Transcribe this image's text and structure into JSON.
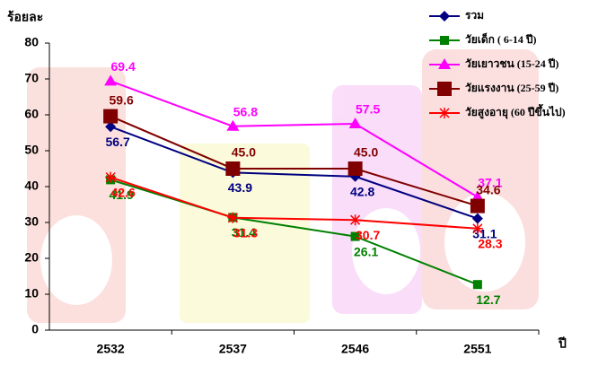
{
  "chart_data": {
    "type": "line",
    "y_label": "ร้อยละ",
    "x_label": "ปี",
    "categories": [
      "2532",
      "2537",
      "2546",
      "2551"
    ],
    "ylim": [
      0,
      80
    ],
    "yticks": [
      0,
      10,
      20,
      30,
      40,
      50,
      60,
      70,
      80
    ],
    "legend": "top-right",
    "series": [
      {
        "name": "รวม",
        "color": "#000080",
        "marker": "diamond",
        "values": [
          56.7,
          43.9,
          42.8,
          31.1
        ]
      },
      {
        "name": "วัยเด็ก ( 6-14 ปี)",
        "color": "#008000",
        "marker": "square",
        "values": [
          41.9,
          31.4,
          26.1,
          12.7
        ]
      },
      {
        "name": "วัยเยาวชน (15-24 ปี)",
        "color": "#ff00ff",
        "marker": "triangle",
        "values": [
          69.4,
          56.8,
          57.5,
          37.1
        ]
      },
      {
        "name": "วัยแรงงาน (25-59 ปี)",
        "color": "#800000",
        "marker": "bigsquare",
        "values": [
          59.6,
          45.0,
          45.0,
          34.6
        ],
        "value_labels": [
          "59.6",
          "45.0",
          "45.0",
          "34.6"
        ]
      },
      {
        "name": "วัยสูงอายุ (60 ปีขึ้นไป)",
        "color": "#ff0000",
        "marker": "star",
        "values": [
          42.6,
          31.3,
          30.7,
          28.3
        ]
      }
    ]
  }
}
